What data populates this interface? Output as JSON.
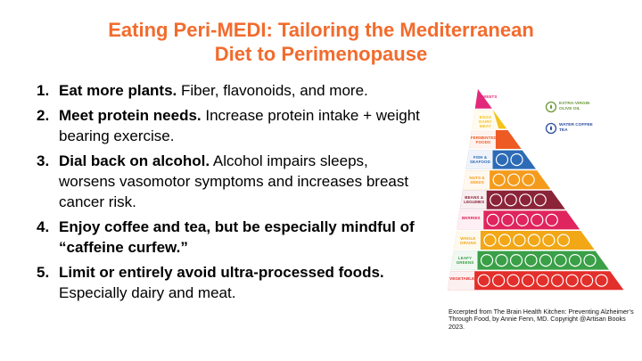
{
  "title": {
    "line1": "Eating Peri-MEDI: Tailoring the Mediterranean",
    "line2": "Diet to Perimenopause"
  },
  "items": [
    {
      "num": "1.",
      "bold": "Eat more plants.",
      "text": " Fiber, flavonoids, and more."
    },
    {
      "num": "2.",
      "bold": "Meet protein needs.",
      "text": " Increase protein intake + weight bearing exercise."
    },
    {
      "num": "3.",
      "bold": "Dial back on alcohol.",
      "text": " Alcohol impairs sleeps, worsens vasomotor symptoms and increases breast cancer risk."
    },
    {
      "num": "4.",
      "bold": "Enjoy coffee and tea, but be especially mindful of  “caffeine curfew.”",
      "text": ""
    },
    {
      "num": "5.",
      "bold": "Limit or entirely avoid ultra-processed foods.",
      "text": " Especially dairy and meat."
    }
  ],
  "pyramid": {
    "tiers": [
      {
        "label": "SWEETS",
        "color": "#e3297a"
      },
      {
        "label": "EGGS DAIRY MEAT",
        "color": "#f4c21d"
      },
      {
        "label": "FERMENTED FOODS",
        "color": "#ee5a24"
      },
      {
        "label": "FISH & SEAFOOD",
        "color": "#2d6bb6"
      },
      {
        "label": "NUTS & SEEDS",
        "color": "#f59b1c"
      },
      {
        "label": "BEANS & LEGUMES",
        "color": "#8b2439"
      },
      {
        "label": "BERRIES",
        "color": "#e0245e"
      },
      {
        "label": "WHOLE GRAINS",
        "color": "#f2a716"
      },
      {
        "label": "LEAFY GREENS",
        "color": "#3aa047"
      },
      {
        "label": "VEGETABLES",
        "color": "#e32f2b"
      }
    ],
    "legend": [
      {
        "label": "EXTRA-VIRGIN OLIVE OIL",
        "color": "#6a9a3a",
        "icon": "olive-oil-drop-icon"
      },
      {
        "label": "WATER COFFEE TEA",
        "color": "#2d4f9e",
        "icon": "water-drop-icon"
      }
    ]
  },
  "credit": "Excerpted from The Brain Health Kitchen: Preventing Alzheimer’s Through Food, by Annie Fenn, MD. Copyright @Artisan Books 2023."
}
